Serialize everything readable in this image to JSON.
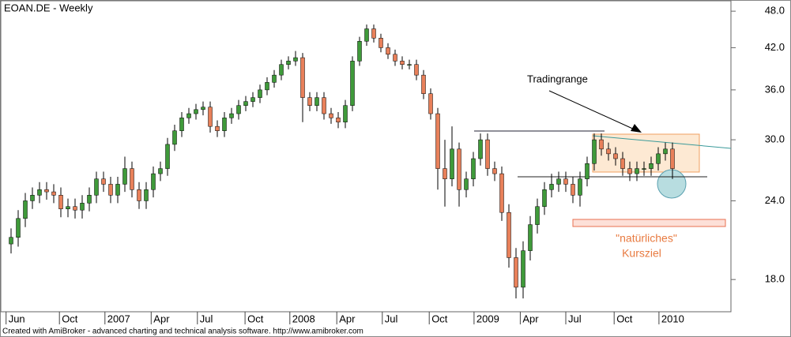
{
  "chart_data": {
    "type": "candlestick",
    "title": "EOAN.DE - Weekly",
    "up_color": "#3f9a3a",
    "down_color": "#e8805a",
    "log_scale": true,
    "xlim": [
      -1,
      101
    ],
    "xticks": [
      {
        "value": -0.7,
        "label": "Jun"
      },
      {
        "value": 6.8,
        "label": "Oct"
      },
      {
        "value": 13.2,
        "label": "2007"
      },
      {
        "value": 19.7,
        "label": "Apr"
      },
      {
        "value": 26.2,
        "label": "Jul"
      },
      {
        "value": 32.9,
        "label": "Oct"
      },
      {
        "value": 39.2,
        "label": "2008"
      },
      {
        "value": 45.8,
        "label": "Apr"
      },
      {
        "value": 52.2,
        "label": "Jul"
      },
      {
        "value": 58.8,
        "label": "Oct"
      },
      {
        "value": 65.1,
        "label": "2009"
      },
      {
        "value": 71.6,
        "label": "Apr"
      },
      {
        "value": 78,
        "label": "Jul"
      },
      {
        "value": 84.8,
        "label": "Oct"
      },
      {
        "value": 91.1,
        "label": "2010"
      }
    ],
    "ylim": [
      16,
      50
    ],
    "yticks": [
      {
        "value": 18,
        "label": "18.0"
      },
      {
        "value": 24,
        "label": "24.0"
      },
      {
        "value": 30,
        "label": "30.0"
      },
      {
        "value": 36,
        "label": "36.0"
      },
      {
        "value": 42,
        "label": "42.0"
      },
      {
        "value": 48,
        "label": "48.0"
      }
    ],
    "open": [
      20.5,
      21,
      22.5,
      24,
      24.5,
      25,
      24.8,
      24.5,
      23.3,
      23.5,
      23.2,
      23.8,
      24.5,
      26,
      25.5,
      24.5,
      25.5,
      27,
      25,
      24,
      25,
      26.5,
      27,
      29.5,
      31,
      32.5,
      33,
      33.5,
      33.8,
      31.5,
      31,
      32.5,
      33,
      34,
      34.5,
      35,
      36,
      37,
      38,
      39.5,
      40,
      40.5,
      35,
      34,
      35,
      33,
      32.5,
      32,
      34,
      40,
      43,
      45,
      43.5,
      42,
      41,
      40,
      39.5,
      39.5,
      38,
      35.5,
      33,
      27,
      26,
      29,
      25,
      26,
      28,
      30,
      27,
      26.5,
      23,
      19.5,
      17.5,
      20,
      22,
      23.5,
      25,
      25.5,
      26,
      25.5,
      24.5,
      26,
      27.5,
      30,
      29,
      28.5,
      28,
      27,
      26.5,
      27,
      27,
      27.5,
      28.5,
      29
    ],
    "high": [
      21.7,
      23.2,
      24.7,
      25.2,
      25.7,
      25.7,
      25.5,
      25.2,
      24.2,
      24.2,
      24.5,
      25.2,
      26.7,
      26.7,
      26.2,
      26.2,
      28.2,
      27.7,
      25.7,
      25.7,
      27.2,
      27.7,
      30.2,
      31.7,
      33.2,
      33.7,
      34.2,
      34.5,
      34.5,
      32.2,
      33.2,
      33.7,
      34.7,
      35.2,
      35.7,
      36.7,
      37.7,
      38.7,
      40.2,
      40.7,
      41.5,
      41.2,
      35.7,
      35.7,
      35.7,
      33.7,
      33.2,
      34.7,
      40.7,
      43.7,
      45.7,
      45.7,
      44.2,
      42.7,
      41.7,
      40.7,
      40.2,
      40.2,
      38.7,
      36.2,
      33.7,
      30,
      31.5,
      29.7,
      26.7,
      28.7,
      30.7,
      30.7,
      27.7,
      27.2,
      23.7,
      20.2,
      20.7,
      22.7,
      24.2,
      25.7,
      26.5,
      26.7,
      26.7,
      26.2,
      26.7,
      28.2,
      30.7,
      30.7,
      29.7,
      29.2,
      28.7,
      27.7,
      27.7,
      27.7,
      28.2,
      29.2,
      29.7,
      29.7
    ],
    "low": [
      19.8,
      20.3,
      21.8,
      23.3,
      23.8,
      24.1,
      23.8,
      22.6,
      22.6,
      22.5,
      22.5,
      23.1,
      23.8,
      24.8,
      23.8,
      23.8,
      24.8,
      24.3,
      23.3,
      23.3,
      24.3,
      25.8,
      26.3,
      28.8,
      30.3,
      31.8,
      32.3,
      32.8,
      30.8,
      30.3,
      30.3,
      31.8,
      32.3,
      33.3,
      33.8,
      34.3,
      35.3,
      36.3,
      37.3,
      38.8,
      39.3,
      32,
      33.3,
      33.3,
      32.3,
      31.8,
      31.3,
      31.3,
      33.3,
      39.3,
      42.3,
      42.8,
      41.3,
      40.3,
      39.3,
      38.8,
      38.8,
      37.3,
      34.8,
      32.3,
      25,
      23.5,
      25.3,
      23.5,
      24.3,
      25.3,
      27.3,
      26.3,
      25.8,
      22.3,
      18.8,
      16.8,
      16.8,
      19.3,
      21.3,
      22.8,
      24.3,
      24.8,
      24.8,
      23.8,
      23.5,
      25.3,
      26.8,
      28.3,
      27.8,
      27.3,
      26.3,
      25.8,
      25.8,
      26.3,
      26.3,
      26.8,
      27.8,
      26
    ],
    "close": [
      21,
      22.5,
      24,
      24.5,
      25,
      24.8,
      24.5,
      23.3,
      23.5,
      23.2,
      23.8,
      24.5,
      26,
      25.5,
      24.5,
      25.5,
      27,
      25,
      24,
      25,
      26.5,
      27,
      29.5,
      31,
      32.5,
      33,
      33.5,
      33.8,
      31.5,
      31,
      32.5,
      33,
      34,
      34.5,
      35,
      36,
      37,
      38,
      39.5,
      40,
      40.5,
      35,
      34,
      35,
      33,
      32.5,
      32,
      34,
      40,
      43,
      45,
      43.5,
      42,
      41,
      40,
      39.5,
      39.5,
      38,
      35.5,
      33,
      27,
      26,
      29,
      25,
      26,
      28,
      30,
      27,
      26.5,
      23,
      19.5,
      17.5,
      20,
      22,
      23.5,
      25,
      25.5,
      26,
      25.5,
      24.5,
      26,
      27.5,
      30,
      29,
      28.5,
      28,
      27,
      26.5,
      27,
      27,
      27.5,
      28.5,
      29,
      27
    ],
    "annotations": [
      "Tradingrange",
      "\"natürliches\"",
      "Kursziel"
    ]
  },
  "footer": "Created with AmiBroker - advanced charting and technical analysis software. http://www.amibroker.com"
}
